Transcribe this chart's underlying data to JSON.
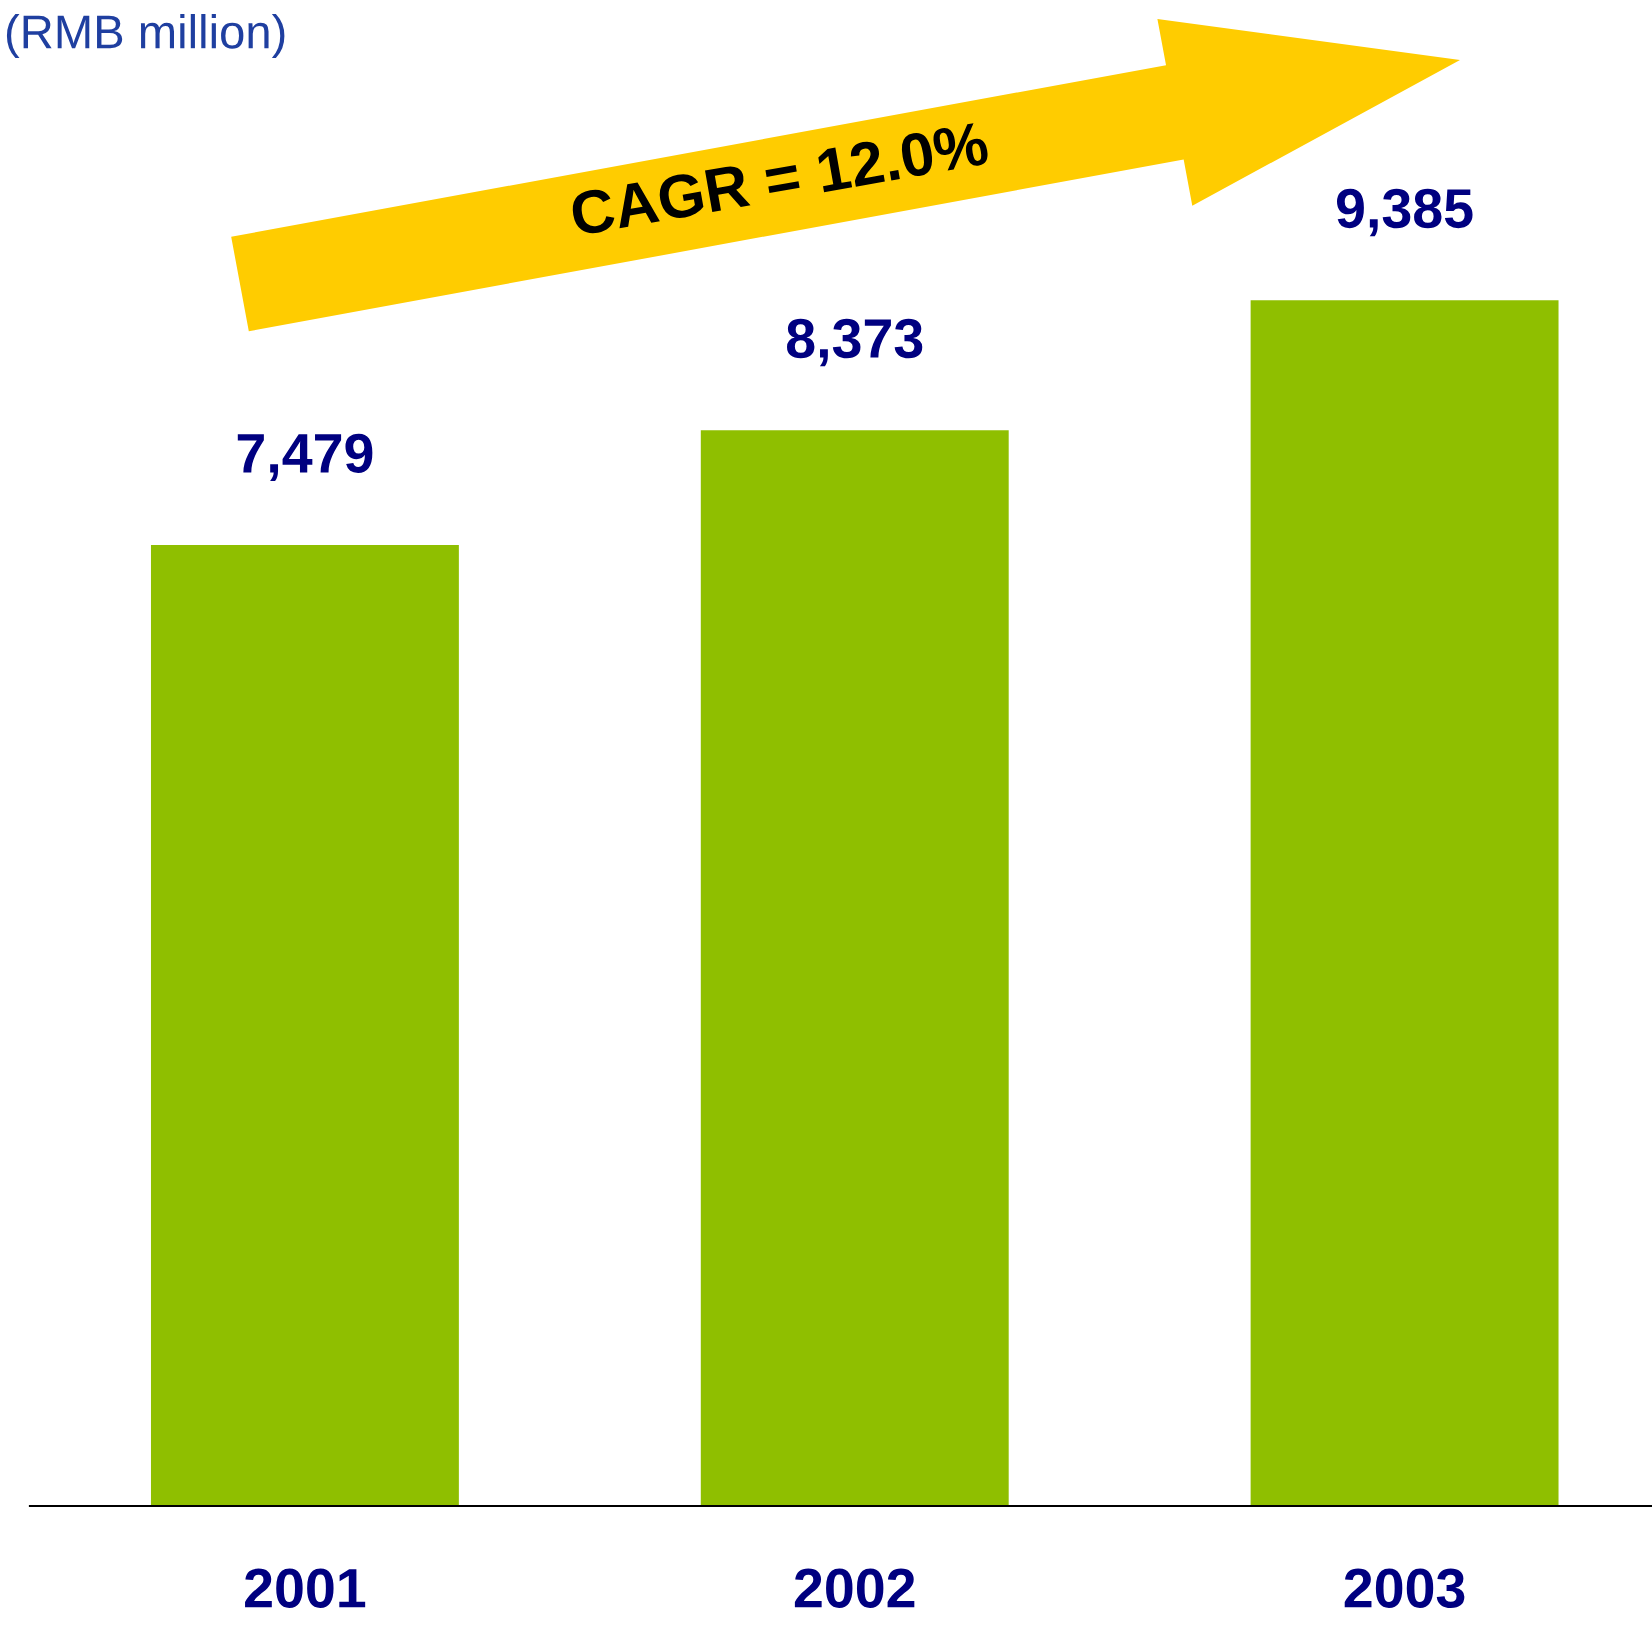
{
  "chart_data": {
    "type": "bar",
    "subtitle": "(RMB million)",
    "categories": [
      "2001",
      "2002",
      "2003"
    ],
    "values": [
      7479,
      8373,
      9385
    ],
    "value_labels": [
      "7,479",
      "8,373",
      "9,385"
    ],
    "color": "#8fbf00",
    "tick_labels": "x",
    "grid": false,
    "legend": false,
    "annotations": [
      "CAGR = 12.0%"
    ]
  }
}
